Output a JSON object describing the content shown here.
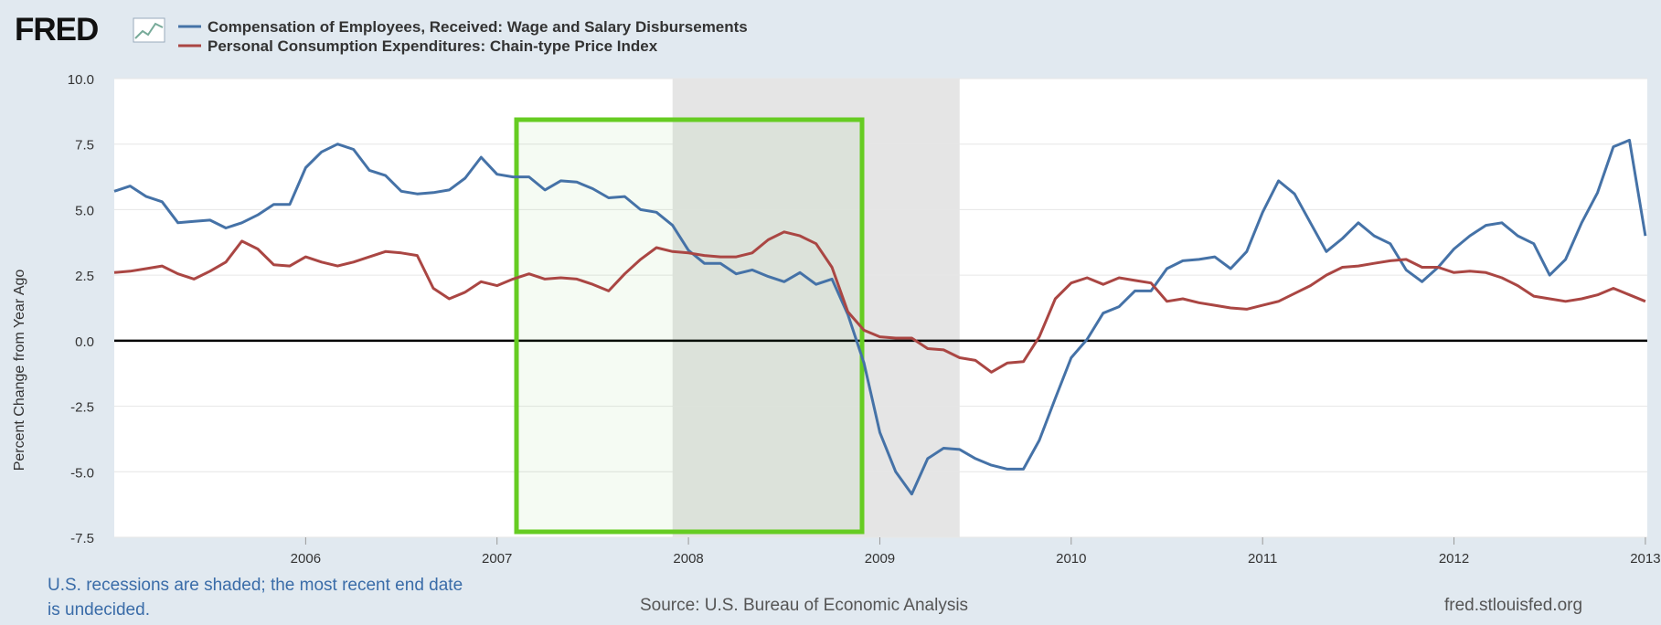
{
  "chart_data": {
    "type": "line",
    "logo": "FRED",
    "y_label": "Percent Change from Year Ago",
    "note": "U.S. recessions are shaded; the most recent end date is undecided.",
    "source": "Source: U.S. Bureau of Economic Analysis",
    "site": "fred.stlouisfed.org",
    "x": [
      2005,
      2005.083,
      2005.167,
      2005.25,
      2005.333,
      2005.417,
      2005.5,
      2005.583,
      2005.667,
      2005.75,
      2005.833,
      2005.917,
      2006,
      2006.083,
      2006.167,
      2006.25,
      2006.333,
      2006.417,
      2006.5,
      2006.583,
      2006.667,
      2006.75,
      2006.833,
      2006.917,
      2007,
      2007.083,
      2007.167,
      2007.25,
      2007.333,
      2007.417,
      2007.5,
      2007.583,
      2007.667,
      2007.75,
      2007.833,
      2007.917,
      2008,
      2008.083,
      2008.167,
      2008.25,
      2008.333,
      2008.417,
      2008.5,
      2008.583,
      2008.667,
      2008.75,
      2008.833,
      2008.917,
      2009,
      2009.083,
      2009.167,
      2009.25,
      2009.333,
      2009.417,
      2009.5,
      2009.583,
      2009.667,
      2009.75,
      2009.833,
      2009.917,
      2010,
      2010.083,
      2010.167,
      2010.25,
      2010.333,
      2010.417,
      2010.5,
      2010.583,
      2010.667,
      2010.75,
      2010.833,
      2010.917,
      2011,
      2011.083,
      2011.167,
      2011.25,
      2011.333,
      2011.417,
      2011.5,
      2011.583,
      2011.667,
      2011.75,
      2011.833,
      2011.917,
      2012,
      2012.083,
      2012.167,
      2012.25,
      2012.333,
      2012.417,
      2012.5,
      2012.583,
      2012.667,
      2012.75,
      2012.833,
      2012.917,
      2013
    ],
    "series": [
      {
        "name": "Compensation of Employees, Received: Wage and Salary Disbursements",
        "color": "#4572a7",
        "values": [
          5.7,
          5.9,
          5.5,
          5.3,
          4.5,
          4.55,
          4.6,
          4.3,
          4.5,
          4.8,
          5.2,
          5.2,
          6.6,
          7.2,
          7.5,
          7.3,
          6.5,
          6.3,
          5.7,
          5.6,
          5.65,
          5.75,
          6.2,
          7.0,
          6.35,
          6.25,
          6.25,
          5.75,
          6.1,
          6.05,
          5.8,
          5.45,
          5.5,
          5.0,
          4.9,
          4.4,
          3.45,
          2.95,
          2.95,
          2.55,
          2.7,
          2.45,
          2.25,
          2.6,
          2.15,
          2.35,
          1.0,
          -0.85,
          -3.5,
          -5.0,
          -5.85,
          -4.5,
          -4.1,
          -4.15,
          -4.5,
          -4.75,
          -4.9,
          -4.9,
          -3.8,
          -2.2,
          -0.65,
          0.05,
          1.05,
          1.3,
          1.9,
          1.9,
          2.75,
          3.05,
          3.1,
          3.2,
          2.75,
          3.4,
          4.9,
          6.1,
          5.6,
          4.5,
          3.4,
          3.9,
          4.5,
          4.0,
          3.7,
          2.7,
          2.25,
          2.8,
          3.5,
          4.0,
          4.4,
          4.5,
          4.0,
          3.7,
          2.5,
          3.1,
          4.5,
          5.65,
          7.4,
          7.65,
          4.0
        ]
      },
      {
        "name": "Personal Consumption Expenditures: Chain-type Price Index",
        "color": "#aa4643",
        "values": [
          2.6,
          2.65,
          2.75,
          2.85,
          2.55,
          2.35,
          2.65,
          3.0,
          3.8,
          3.5,
          2.9,
          2.85,
          3.2,
          3.0,
          2.85,
          3.0,
          3.2,
          3.4,
          3.35,
          3.25,
          2.0,
          1.6,
          1.85,
          2.25,
          2.1,
          2.35,
          2.55,
          2.35,
          2.4,
          2.35,
          2.15,
          1.9,
          2.55,
          3.1,
          3.55,
          3.4,
          3.35,
          3.25,
          3.2,
          3.2,
          3.35,
          3.85,
          4.15,
          4.0,
          3.7,
          2.8,
          1.1,
          0.4,
          0.15,
          0.1,
          0.1,
          -0.3,
          -0.35,
          -0.65,
          -0.75,
          -1.2,
          -0.85,
          -0.8,
          0.15,
          1.6,
          2.2,
          2.4,
          2.15,
          2.4,
          2.3,
          2.2,
          1.5,
          1.6,
          1.45,
          1.35,
          1.25,
          1.2,
          1.35,
          1.5,
          1.8,
          2.1,
          2.5,
          2.8,
          2.85,
          2.95,
          3.05,
          3.1,
          2.8,
          2.8,
          2.6,
          2.65,
          2.6,
          2.4,
          2.1,
          1.7,
          1.6,
          1.5,
          1.6,
          1.75,
          2.0,
          1.75,
          1.5
        ]
      }
    ],
    "recessions": [
      [
        2007.917,
        2009.417
      ]
    ],
    "xlim": [
      2005,
      2013.01
    ],
    "xticks": [
      2006,
      2007,
      2008,
      2009,
      2010,
      2011,
      2012,
      2013
    ],
    "ylim": [
      -7.5,
      10
    ],
    "yticks": [
      {
        "value": 10,
        "label": "10.0"
      },
      {
        "value": 7.5,
        "label": "7.5"
      },
      {
        "value": 5,
        "label": "5.0"
      },
      {
        "value": 2.5,
        "label": "2.5"
      },
      {
        "value": 0,
        "label": "0.0"
      },
      {
        "value": -2.5,
        "label": "-2.5"
      },
      {
        "value": -5,
        "label": "-5.0"
      },
      {
        "value": -7.5,
        "label": "-7.5"
      }
    ],
    "grid": true
  }
}
